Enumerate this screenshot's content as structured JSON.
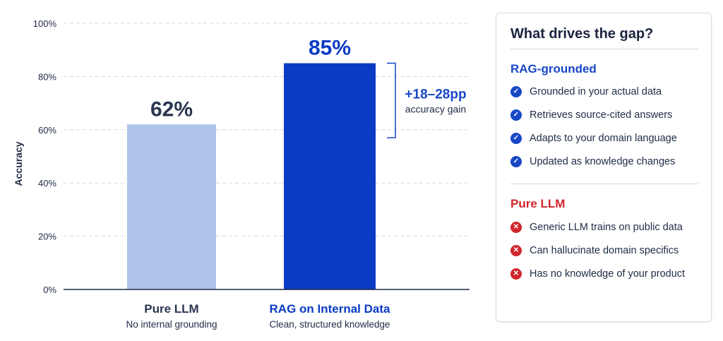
{
  "colors": {
    "pure": "#aec3ea",
    "rag": "#0a3bc4",
    "accent_blue": "#1747c7",
    "accent_red": "#d0262c",
    "axis": "#1f2a44",
    "grid": "#cfd6e2"
  },
  "chart_data": {
    "type": "bar",
    "ylabel": "Accuracy",
    "ylim": [
      0,
      100
    ],
    "yticks": [
      "0%",
      "20%",
      "40%",
      "60%",
      "80%",
      "100%"
    ],
    "grid": true,
    "categories": [
      "Pure LLM",
      "RAG on Internal Data"
    ],
    "subtitles": [
      "No internal grounding",
      "Clean, structured knowledge"
    ],
    "values": [
      62,
      85
    ],
    "data_labels": [
      "62%",
      "85%"
    ],
    "annotation": {
      "value": "+18–28pp",
      "label": "accuracy gain"
    }
  },
  "panel": {
    "title": "What drives the gap?",
    "rag": {
      "heading": "RAG-grounded",
      "icon": "check-circle-icon",
      "items": [
        "Grounded in your actual data",
        "Retrieves source-cited answers",
        "Adapts to your domain language",
        "Updated as knowledge changes"
      ]
    },
    "pure": {
      "heading": "Pure LLM",
      "icon": "x-circle-icon",
      "items": [
        "Generic LLM trains on public data",
        "Can hallucinate domain specifics",
        "Has no knowledge of your product"
      ]
    }
  }
}
